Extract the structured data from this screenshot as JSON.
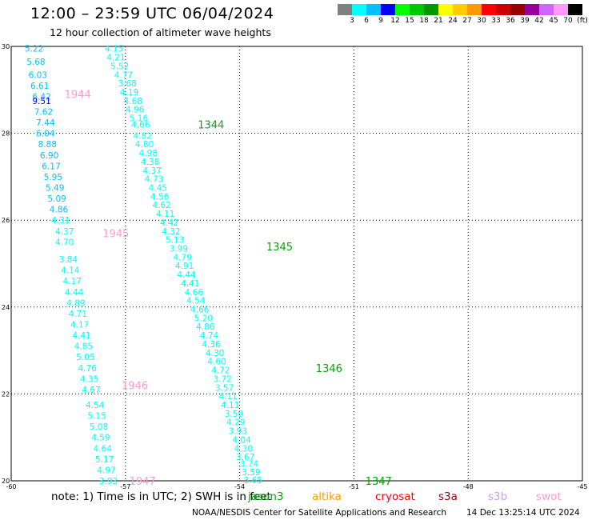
{
  "header": {
    "title": "12:00 – 23:59 UTC 06/04/2024",
    "subtitle": "12 hour collection of altimeter wave heights"
  },
  "legend": {
    "colors": [
      "#808080",
      "#00ffff",
      "#00bfff",
      "#0000ff",
      "#00ff00",
      "#00c800",
      "#009600",
      "#ffff00",
      "#ffcc00",
      "#ff9900",
      "#ff0000",
      "#cc0000",
      "#990000",
      "#990099",
      "#cc66ff",
      "#ff99ff",
      "#000000"
    ],
    "labels": [
      "3",
      "6",
      "9",
      "12",
      "15",
      "18",
      "21",
      "24",
      "27",
      "30",
      "33",
      "36",
      "39",
      "42",
      "45",
      "70",
      "(ft)"
    ]
  },
  "footer": {
    "note": "note: 1) Time is in UTC; 2) SWH is in feet",
    "missions": [
      {
        "name": "jason3",
        "color": "#00aa00"
      },
      {
        "name": "altika",
        "color": "#ff9900"
      },
      {
        "name": "cryosat",
        "color": "#ff0000"
      },
      {
        "name": "s3a",
        "color": "#990000"
      },
      {
        "name": "s3b",
        "color": "#cc99ff"
      },
      {
        "name": "swot",
        "color": "#ff99cc"
      }
    ],
    "credit": "NOAA/NESDIS Center for Satellite Applications and Research",
    "generated": "14 Dec 13:25:14 UTC 2024"
  },
  "chart_data": {
    "type": "scatter",
    "title": "12:00 – 23:59 UTC 06/04/2024",
    "units": "ft",
    "xlim": [
      -60,
      -45
    ],
    "ylim": [
      20,
      30
    ],
    "x_ticks": [
      "-60",
      "-57",
      "-54",
      "-51",
      "-48",
      "-45"
    ],
    "y_ticks": [
      "20",
      "22",
      "24",
      "26",
      "28",
      "30"
    ],
    "grid": true,
    "track_colors": {
      "swot": "#ff99cc",
      "jason3": "#00aa00"
    },
    "swot_track": {
      "passes": [
        {
          "time": "1944",
          "lon": -58.6,
          "lat": 28.9
        },
        {
          "time": "1945",
          "lon": -57.6,
          "lat": 25.7
        },
        {
          "time": "1946",
          "lon": -57.1,
          "lat": 22.2
        },
        {
          "time": "1947",
          "lon": -56.9,
          "lat": 20.0
        }
      ],
      "points": [
        {
          "lon": -59.4,
          "lat": 29.95,
          "v": "5.22",
          "c": "#00bfff"
        },
        {
          "lon": -59.35,
          "lat": 29.65,
          "v": "5.68",
          "c": "#00bfff"
        },
        {
          "lon": -59.3,
          "lat": 29.35,
          "v": "6.03",
          "c": "#00bfff"
        },
        {
          "lon": -59.25,
          "lat": 29.1,
          "v": "6.61",
          "c": "#00bfff"
        },
        {
          "lon": -59.2,
          "lat": 28.85,
          "v": "6.42",
          "c": "#00bfff"
        },
        {
          "lon": -59.2,
          "lat": 28.75,
          "v": "9.51",
          "c": "#0000ff"
        },
        {
          "lon": -59.15,
          "lat": 28.5,
          "v": "7.62",
          "c": "#00bfff"
        },
        {
          "lon": -59.1,
          "lat": 28.25,
          "v": "7.44",
          "c": "#00bfff"
        },
        {
          "lon": -59.1,
          "lat": 28.0,
          "v": "6.04",
          "c": "#00bfff"
        },
        {
          "lon": -59.05,
          "lat": 27.75,
          "v": "8.88",
          "c": "#00bfff"
        },
        {
          "lon": -59.0,
          "lat": 27.5,
          "v": "6.90",
          "c": "#00bfff"
        },
        {
          "lon": -58.95,
          "lat": 27.25,
          "v": "6.17",
          "c": "#00bfff"
        },
        {
          "lon": -58.9,
          "lat": 27.0,
          "v": "5.95",
          "c": "#00bfff"
        },
        {
          "lon": -58.85,
          "lat": 26.75,
          "v": "5.49",
          "c": "#00bfff"
        },
        {
          "lon": -58.8,
          "lat": 26.5,
          "v": "5.09",
          "c": "#00bfff"
        },
        {
          "lon": -58.75,
          "lat": 26.25,
          "v": "4.86",
          "c": "#00bfff"
        },
        {
          "lon": -58.7,
          "lat": 26.0,
          "v": "4.31",
          "c": "#00ffff"
        },
        {
          "lon": -58.6,
          "lat": 25.75,
          "v": "4.37",
          "c": "#00ffff"
        },
        {
          "lon": -58.6,
          "lat": 25.5,
          "v": "4.70",
          "c": "#00ffff"
        },
        {
          "lon": -58.5,
          "lat": 25.1,
          "v": "3.84",
          "c": "#00ffff"
        },
        {
          "lon": -58.45,
          "lat": 24.85,
          "v": "4.14",
          "c": "#00ffff"
        },
        {
          "lon": -58.4,
          "lat": 24.6,
          "v": "4.17",
          "c": "#00ffff"
        },
        {
          "lon": -58.35,
          "lat": 24.35,
          "v": "4.44",
          "c": "#00ffff"
        },
        {
          "lon": -58.3,
          "lat": 24.1,
          "v": "4.89",
          "c": "#00ffff"
        },
        {
          "lon": -58.25,
          "lat": 23.85,
          "v": "4.71",
          "c": "#00ffff"
        },
        {
          "lon": -58.2,
          "lat": 23.6,
          "v": "4.17",
          "c": "#00ffff"
        },
        {
          "lon": -58.15,
          "lat": 23.35,
          "v": "4.41",
          "c": "#00ffff"
        },
        {
          "lon": -58.1,
          "lat": 23.1,
          "v": "4.85",
          "c": "#00ffff"
        },
        {
          "lon": -58.05,
          "lat": 22.85,
          "v": "5.05",
          "c": "#00ffff"
        },
        {
          "lon": -58.0,
          "lat": 22.6,
          "v": "4.76",
          "c": "#00ffff"
        },
        {
          "lon": -57.95,
          "lat": 22.35,
          "v": "4.35",
          "c": "#00ffff"
        },
        {
          "lon": -57.9,
          "lat": 22.1,
          "v": "4.67",
          "c": "#00ffff"
        },
        {
          "lon": -57.8,
          "lat": 21.75,
          "v": "4.54",
          "c": "#00ffff"
        },
        {
          "lon": -57.75,
          "lat": 21.5,
          "v": "5.15",
          "c": "#00ffff"
        },
        {
          "lon": -57.7,
          "lat": 21.25,
          "v": "5.08",
          "c": "#00ffff"
        },
        {
          "lon": -57.65,
          "lat": 21.0,
          "v": "4.59",
          "c": "#00ffff"
        },
        {
          "lon": -57.6,
          "lat": 20.75,
          "v": "4.64",
          "c": "#00ffff"
        },
        {
          "lon": -57.55,
          "lat": 20.5,
          "v": "5.17",
          "c": "#00ffff"
        },
        {
          "lon": -57.5,
          "lat": 20.25,
          "v": "4.97",
          "c": "#00ffff"
        },
        {
          "lon": -57.45,
          "lat": 20.0,
          "v": "3.93",
          "c": "#00ffff"
        }
      ]
    },
    "jason3_track": {
      "passes": [
        {
          "time": "1344",
          "lon": -55.1,
          "lat": 28.2
        },
        {
          "time": "1345",
          "lon": -53.3,
          "lat": 25.4
        },
        {
          "time": "1346",
          "lon": -52.0,
          "lat": 22.6
        },
        {
          "time": "1347",
          "lon": -50.7,
          "lat": 20.0
        }
      ],
      "points": [
        {
          "lon": -57.3,
          "lat": 29.95,
          "v": "4.15",
          "c": "#00ffff"
        },
        {
          "lon": -57.25,
          "lat": 29.75,
          "v": "4.21",
          "c": "#00ffff"
        },
        {
          "lon": -57.15,
          "lat": 29.55,
          "v": "5.52",
          "c": "#00ffff"
        },
        {
          "lon": -57.05,
          "lat": 29.35,
          "v": "4.77",
          "c": "#00ffff"
        },
        {
          "lon": -56.95,
          "lat": 29.15,
          "v": "3.68",
          "c": "#00ffff"
        },
        {
          "lon": -56.9,
          "lat": 28.95,
          "v": "4.19",
          "c": "#00ffff"
        },
        {
          "lon": -56.8,
          "lat": 28.75,
          "v": "4.68",
          "c": "#00ffff"
        },
        {
          "lon": -56.75,
          "lat": 28.55,
          "v": "4.96",
          "c": "#00ffff"
        },
        {
          "lon": -56.65,
          "lat": 28.35,
          "v": "5.16",
          "c": "#00ffff"
        },
        {
          "lon": -56.6,
          "lat": 28.2,
          "v": "4.66",
          "c": "#00ffff"
        },
        {
          "lon": -56.55,
          "lat": 27.95,
          "v": "4.82",
          "c": "#00ffff"
        },
        {
          "lon": -56.5,
          "lat": 27.75,
          "v": "4.80",
          "c": "#00ffff"
        },
        {
          "lon": -56.4,
          "lat": 27.55,
          "v": "4.98",
          "c": "#00ffff"
        },
        {
          "lon": -56.35,
          "lat": 27.35,
          "v": "4.38",
          "c": "#00ffff"
        },
        {
          "lon": -56.3,
          "lat": 27.15,
          "v": "4.37",
          "c": "#00ffff"
        },
        {
          "lon": -56.25,
          "lat": 26.95,
          "v": "4.73",
          "c": "#00ffff"
        },
        {
          "lon": -56.15,
          "lat": 26.75,
          "v": "4.45",
          "c": "#00ffff"
        },
        {
          "lon": -56.1,
          "lat": 26.55,
          "v": "4.56",
          "c": "#00ffff"
        },
        {
          "lon": -56.05,
          "lat": 26.35,
          "v": "4.62",
          "c": "#00ffff"
        },
        {
          "lon": -55.95,
          "lat": 26.15,
          "v": "4.11",
          "c": "#00ffff"
        },
        {
          "lon": -55.85,
          "lat": 25.95,
          "v": "4.42",
          "c": "#00ffff"
        },
        {
          "lon": -55.8,
          "lat": 25.75,
          "v": "4.32",
          "c": "#00ffff"
        },
        {
          "lon": -55.7,
          "lat": 25.55,
          "v": "5.13",
          "c": "#00ffff"
        },
        {
          "lon": -55.6,
          "lat": 25.35,
          "v": "3.99",
          "c": "#00ffff"
        },
        {
          "lon": -55.5,
          "lat": 25.15,
          "v": "4.79",
          "c": "#00ffff"
        },
        {
          "lon": -55.45,
          "lat": 24.95,
          "v": "4.91",
          "c": "#00ffff"
        },
        {
          "lon": -55.4,
          "lat": 24.75,
          "v": "4.44",
          "c": "#00ffff"
        },
        {
          "lon": -55.3,
          "lat": 24.55,
          "v": "4.41",
          "c": "#00ffff"
        },
        {
          "lon": -55.2,
          "lat": 24.35,
          "v": "4.66",
          "c": "#00ffff"
        },
        {
          "lon": -55.15,
          "lat": 24.15,
          "v": "4.54",
          "c": "#00ffff"
        },
        {
          "lon": -55.05,
          "lat": 23.95,
          "v": "4.66",
          "c": "#00ffff"
        },
        {
          "lon": -54.95,
          "lat": 23.75,
          "v": "5.20",
          "c": "#00ffff"
        },
        {
          "lon": -54.9,
          "lat": 23.55,
          "v": "4.86",
          "c": "#00ffff"
        },
        {
          "lon": -54.8,
          "lat": 23.35,
          "v": "4.74",
          "c": "#00ffff"
        },
        {
          "lon": -54.75,
          "lat": 23.15,
          "v": "4.36",
          "c": "#00ffff"
        },
        {
          "lon": -54.65,
          "lat": 22.95,
          "v": "4.30",
          "c": "#00ffff"
        },
        {
          "lon": -54.6,
          "lat": 22.75,
          "v": "4.60",
          "c": "#00ffff"
        },
        {
          "lon": -54.5,
          "lat": 22.55,
          "v": "4.72",
          "c": "#00ffff"
        },
        {
          "lon": -54.45,
          "lat": 22.35,
          "v": "3.72",
          "c": "#00ffff"
        },
        {
          "lon": -54.4,
          "lat": 22.15,
          "v": "3.57",
          "c": "#00ffff"
        },
        {
          "lon": -54.3,
          "lat": 21.95,
          "v": "4.11",
          "c": "#00ffff"
        },
        {
          "lon": -54.25,
          "lat": 21.75,
          "v": "4.11",
          "c": "#00ffff"
        },
        {
          "lon": -54.15,
          "lat": 21.55,
          "v": "3.59",
          "c": "#00ffff"
        },
        {
          "lon": -54.1,
          "lat": 21.35,
          "v": "4.29",
          "c": "#00ffff"
        },
        {
          "lon": -54.05,
          "lat": 21.15,
          "v": "3.93",
          "c": "#00ffff"
        },
        {
          "lon": -53.95,
          "lat": 20.95,
          "v": "4.04",
          "c": "#00ffff"
        },
        {
          "lon": -53.9,
          "lat": 20.75,
          "v": "4.30",
          "c": "#00ffff"
        },
        {
          "lon": -53.85,
          "lat": 20.55,
          "v": "3.67",
          "c": "#00ffff"
        },
        {
          "lon": -53.75,
          "lat": 20.4,
          "v": "3.74",
          "c": "#00ffff"
        },
        {
          "lon": -53.7,
          "lat": 20.2,
          "v": "3.59",
          "c": "#00ffff"
        },
        {
          "lon": -53.65,
          "lat": 20.02,
          "v": "3.65",
          "c": "#00ffff"
        }
      ]
    }
  }
}
